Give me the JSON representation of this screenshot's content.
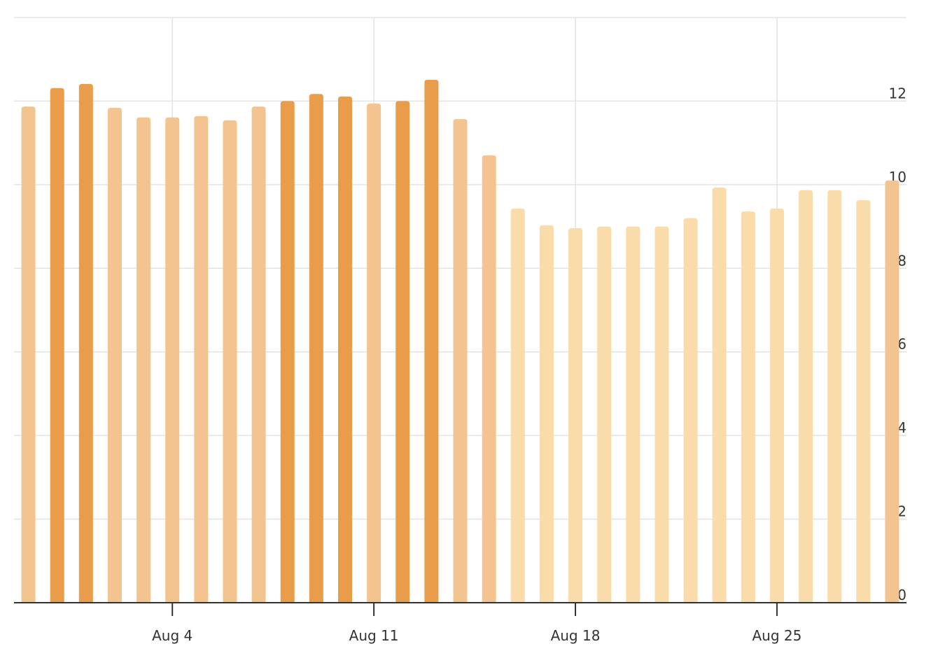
{
  "chart_data": {
    "type": "bar",
    "categories": [
      null,
      null,
      null,
      null,
      null,
      "Aug 4",
      null,
      null,
      null,
      null,
      null,
      null,
      "Aug 11",
      null,
      null,
      null,
      null,
      null,
      null,
      "Aug 18",
      null,
      null,
      null,
      null,
      null,
      null,
      "Aug 25",
      null,
      null,
      null,
      null
    ],
    "values": [
      11.87,
      12.31,
      12.41,
      11.84,
      11.61,
      11.61,
      11.64,
      11.54,
      11.87,
      12.0,
      12.17,
      12.11,
      11.94,
      12.0,
      12.51,
      11.57,
      10.7,
      9.43,
      9.03,
      8.96,
      9.0,
      9.0,
      9.0,
      9.2,
      9.93,
      9.36,
      9.43,
      9.87,
      9.87,
      9.63,
      10.1
    ],
    "colors": [
      "#f3c48f",
      "#e99d4a",
      "#e99d4a",
      "#f3c48f",
      "#f3c48f",
      "#f3c48f",
      "#f3c48f",
      "#f3c48f",
      "#f3c48f",
      "#e99d4a",
      "#e99d4a",
      "#e99d4a",
      "#f3c48f",
      "#e99d4a",
      "#e99d4a",
      "#f3c48f",
      "#f3c48f",
      "#f9dcaa",
      "#f9dcaa",
      "#f9dcaa",
      "#f9dcaa",
      "#f9dcaa",
      "#f9dcaa",
      "#f9dcaa",
      "#f9dcaa",
      "#f9dcaa",
      "#f9dcaa",
      "#f9dcaa",
      "#f9dcaa",
      "#f9dcaa",
      "#f3c48f"
    ],
    "ylim": [
      0,
      14
    ],
    "yticks": [
      0,
      2,
      4,
      6,
      8,
      10,
      12
    ],
    "grid": true
  }
}
